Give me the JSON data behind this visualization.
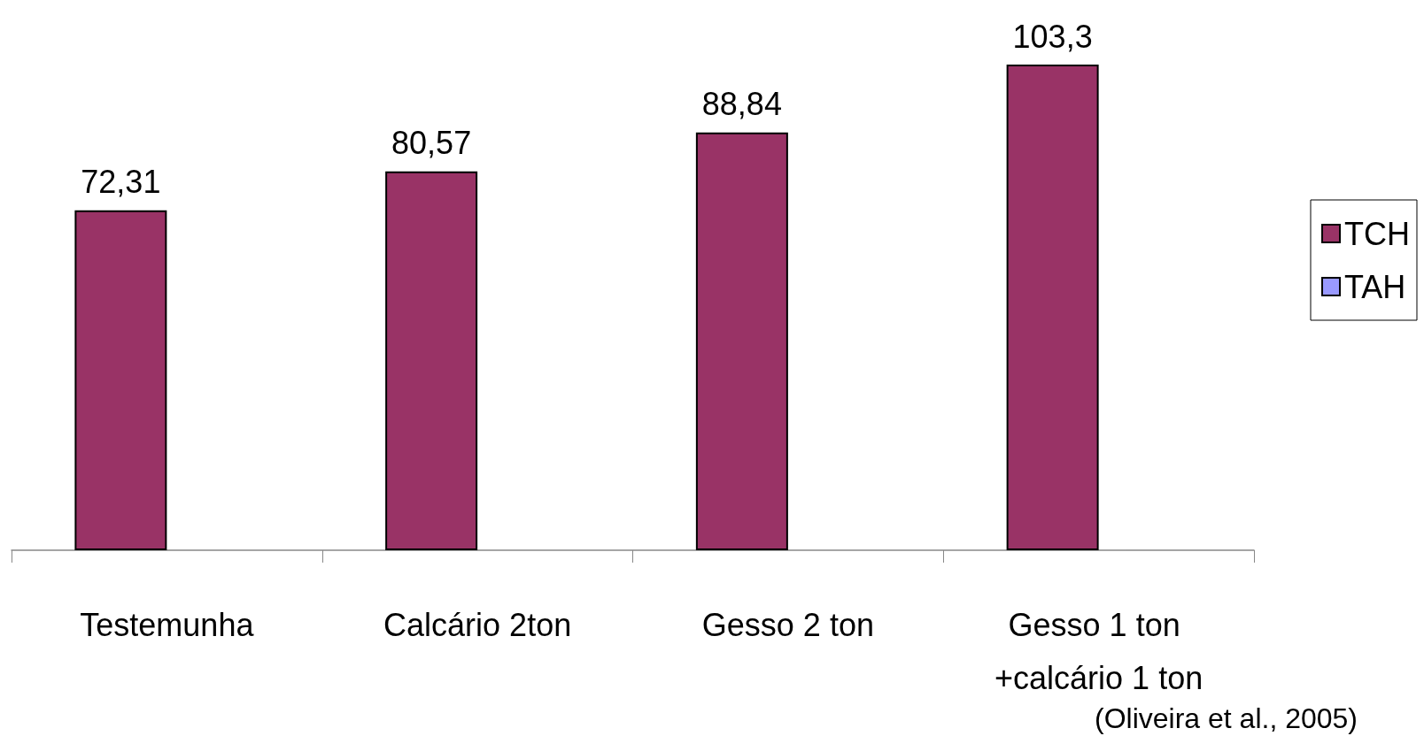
{
  "chart_data": {
    "type": "bar",
    "categories": [
      "Testemunha",
      "Calcário 2ton",
      "Gesso 2 ton",
      "Gesso 1 ton +calcário 1 ton"
    ],
    "series": [
      {
        "name": "TCH",
        "color": "#993366",
        "values": [
          72.31,
          80.57,
          88.84,
          103.3
        ],
        "value_labels": [
          "72,31",
          "80,57",
          "88,84",
          "103,3"
        ]
      },
      {
        "name": "TAH",
        "color": "#9999ff",
        "values": [
          null,
          null,
          null,
          null
        ]
      }
    ],
    "legend": "right",
    "annotations": [
      "(Oliveira et al., 2005)"
    ]
  }
}
